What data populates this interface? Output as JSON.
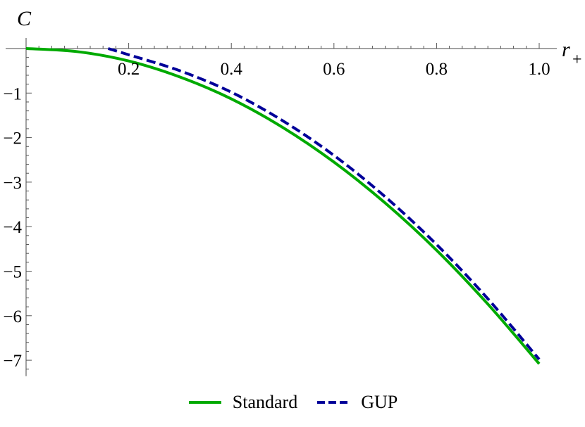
{
  "chart_data": {
    "type": "line",
    "ylabel": "C",
    "xlabel_base": "r",
    "xlabel_sub": "+",
    "xlim": [
      0.0,
      1.0
    ],
    "ylim": [
      -7.2,
      0.0
    ],
    "x_ticks": [
      {
        "value": 0.2,
        "label": "0.2"
      },
      {
        "value": 0.4,
        "label": "0.4"
      },
      {
        "value": 0.6,
        "label": "0.6"
      },
      {
        "value": 0.8,
        "label": "0.8"
      },
      {
        "value": 1.0,
        "label": "1.0"
      }
    ],
    "y_ticks": [
      {
        "value": -1,
        "label": "−1"
      },
      {
        "value": -2,
        "label": "−2"
      },
      {
        "value": -3,
        "label": "−3"
      },
      {
        "value": -4,
        "label": "−4"
      },
      {
        "value": -5,
        "label": "−5"
      },
      {
        "value": -6,
        "label": "−6"
      },
      {
        "value": -7,
        "label": "−7"
      }
    ],
    "series": [
      {
        "name": "Standard",
        "color": "#00aa00",
        "dash": "solid",
        "x": [
          0.0,
          0.1,
          0.2,
          0.3,
          0.4,
          0.5,
          0.6,
          0.7,
          0.8,
          0.9,
          1.0
        ],
        "y": [
          0.0,
          -0.07,
          -0.28,
          -0.64,
          -1.13,
          -1.77,
          -2.55,
          -3.47,
          -4.53,
          -5.74,
          -7.08
        ]
      },
      {
        "name": "GUP",
        "color": "#000099",
        "dash": "dashed",
        "x": [
          0.16,
          0.2,
          0.3,
          0.4,
          0.5,
          0.6,
          0.7,
          0.8,
          0.9,
          1.0
        ],
        "y": [
          0.0,
          -0.14,
          -0.5,
          -0.98,
          -1.62,
          -2.4,
          -3.33,
          -4.4,
          -5.62,
          -6.98
        ]
      }
    ]
  }
}
